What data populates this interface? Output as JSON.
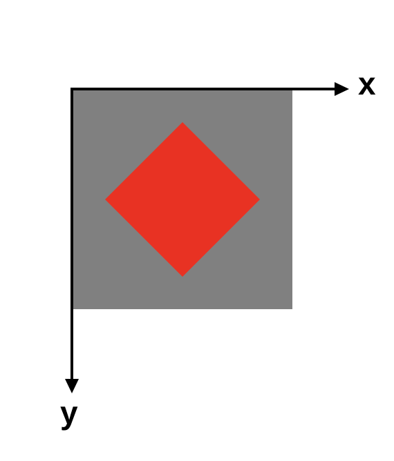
{
  "axes": {
    "x_label": "x",
    "y_label": "y"
  },
  "colors": {
    "background": "#ffffff",
    "square": "#808080",
    "diamond": "#e83223",
    "axis": "#000000"
  }
}
